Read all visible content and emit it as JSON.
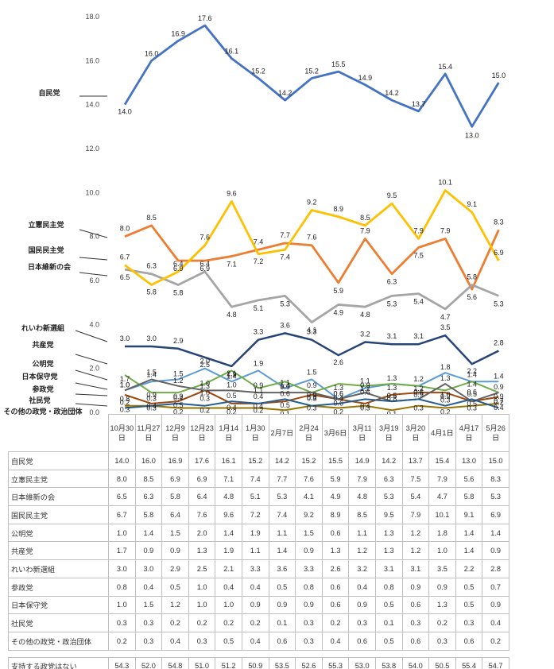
{
  "chart_data": {
    "type": "line",
    "title": "",
    "xlabel": "",
    "ylabel": "",
    "ylim": [
      0,
      18
    ],
    "yticks": [
      0.0,
      2.0,
      4.0,
      6.0,
      8.0,
      10.0,
      12.0,
      14.0,
      16.0,
      18.0
    ],
    "grid": false,
    "categories": [
      "10月30日",
      "11月27日",
      "12月9日",
      "12月23日",
      "1月14日",
      "1月30日",
      "2月7日",
      "2月24日",
      "3月6日",
      "3月11日",
      "3月19日",
      "3月20日",
      "4月1日",
      "4月17日",
      "5月26日"
    ],
    "series": [
      {
        "name": "自民党",
        "color": "#4472c4",
        "values": [
          14.0,
          16.0,
          16.9,
          17.6,
          16.1,
          15.2,
          14.2,
          15.2,
          15.5,
          14.9,
          14.2,
          13.7,
          15.4,
          13.0,
          15.0
        ]
      },
      {
        "name": "立憲民主党",
        "color": "#ed7d31",
        "values": [
          8.0,
          8.5,
          6.9,
          6.9,
          7.1,
          7.4,
          7.7,
          7.6,
          5.9,
          7.9,
          6.3,
          7.5,
          7.9,
          5.6,
          8.3
        ]
      },
      {
        "name": "日本維新の会",
        "color": "#a5a5a5",
        "values": [
          6.5,
          6.3,
          5.8,
          6.4,
          4.8,
          5.1,
          5.3,
          4.1,
          4.9,
          4.8,
          5.3,
          5.4,
          4.7,
          5.8,
          5.3
        ]
      },
      {
        "name": "国民民主党",
        "color": "#ffc000",
        "values": [
          6.7,
          5.8,
          6.4,
          7.6,
          9.6,
          7.2,
          7.4,
          9.2,
          8.9,
          8.5,
          9.5,
          7.9,
          10.1,
          9.1,
          6.9
        ]
      },
      {
        "name": "公明党",
        "color": "#5b9bd5",
        "values": [
          1.0,
          1.4,
          1.5,
          2.0,
          1.4,
          1.9,
          1.1,
          1.5,
          0.6,
          1.1,
          1.3,
          1.2,
          1.8,
          1.4,
          1.4
        ]
      },
      {
        "name": "共産党",
        "color": "#70ad47",
        "values": [
          1.7,
          0.9,
          0.9,
          1.3,
          1.9,
          1.1,
          1.4,
          0.9,
          1.3,
          1.2,
          1.3,
          1.2,
          1.0,
          1.4,
          0.9
        ]
      },
      {
        "name": "れいわ新選組",
        "color": "#264478",
        "values": [
          3.0,
          3.0,
          2.9,
          2.5,
          2.1,
          3.3,
          3.6,
          3.3,
          2.6,
          3.2,
          3.1,
          3.1,
          3.5,
          2.2,
          2.8
        ]
      },
      {
        "name": "参政党",
        "color": "#9e480e",
        "values": [
          0.8,
          0.4,
          0.5,
          1.0,
          0.4,
          0.4,
          0.5,
          0.8,
          0.6,
          0.4,
          0.8,
          0.9,
          0.9,
          0.5,
          0.7
        ]
      },
      {
        "name": "日本保守党",
        "color": "#636363",
        "values": [
          1.0,
          1.5,
          1.2,
          1.0,
          1.0,
          0.9,
          0.9,
          0.9,
          0.6,
          0.9,
          0.5,
          0.6,
          1.3,
          0.5,
          0.9
        ]
      },
      {
        "name": "社民党",
        "color": "#997300",
        "values": [
          0.3,
          0.3,
          0.2,
          0.2,
          0.2,
          0.2,
          0.1,
          0.3,
          0.2,
          0.3,
          0.1,
          0.3,
          0.2,
          0.3,
          0.4
        ]
      },
      {
        "name": "その他の政党・政治団体",
        "color": "#255e91",
        "values": [
          0.2,
          0.3,
          0.4,
          0.3,
          0.5,
          0.4,
          0.6,
          0.3,
          0.4,
          0.6,
          0.5,
          0.6,
          0.3,
          0.6,
          0.2
        ]
      }
    ],
    "table_extra_row": {
      "name": "支持する政党はない",
      "values": [
        54.3,
        52.0,
        54.8,
        51.0,
        51.2,
        50.9,
        53.5,
        52.6,
        55.3,
        53.0,
        53.8,
        54.0,
        50.5,
        55.4,
        54.7
      ]
    },
    "legend": "left"
  }
}
